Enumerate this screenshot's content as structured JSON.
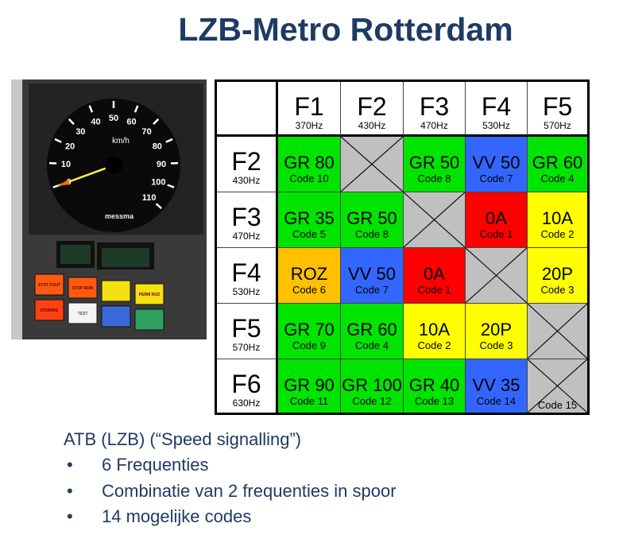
{
  "title": "LZB-Metro Rotterdam",
  "photo": {
    "gauge_labels": [
      "0",
      "10",
      "20",
      "30",
      "40",
      "50",
      "60",
      "70",
      "80",
      "90",
      "100",
      "110"
    ],
    "unit": "km/h",
    "brand": "messma",
    "buttons": [
      "SYST FOUT",
      "STOP RDM",
      "",
      "PERM ROZ",
      "STORING",
      "TEST",
      "",
      ""
    ]
  },
  "colors": {
    "green": "#00e400",
    "blue": "#3366ff",
    "red": "#ff0000",
    "yellow": "#ffff00",
    "orange": "#ffc000",
    "grey": "#c0c0c0",
    "title": "#1f3a64"
  },
  "table": {
    "columns": [
      {
        "name": "F1",
        "freq": "370Hz"
      },
      {
        "name": "F2",
        "freq": "430Hz"
      },
      {
        "name": "F3",
        "freq": "470Hz"
      },
      {
        "name": "F4",
        "freq": "530Hz"
      },
      {
        "name": "F5",
        "freq": "570Hz"
      }
    ],
    "rows": [
      {
        "name": "F2",
        "freq": "430Hz",
        "cells": [
          {
            "label": "GR 80",
            "code": "Code 10",
            "color": "green"
          },
          {
            "x": true
          },
          {
            "label": "GR 50",
            "code": "Code 8",
            "color": "green"
          },
          {
            "label": "VV 50",
            "code": "Code 7",
            "color": "blue"
          },
          {
            "label": "GR 60",
            "code": "Code 4",
            "color": "green"
          }
        ]
      },
      {
        "name": "F3",
        "freq": "470Hz",
        "cells": [
          {
            "label": "GR 35",
            "code": "Code 5",
            "color": "green"
          },
          {
            "label": "GR 50",
            "code": "Code 8",
            "color": "green"
          },
          {
            "x": true
          },
          {
            "label": "0A",
            "code": "Code 1",
            "color": "red"
          },
          {
            "label": "10A",
            "code": "Code 2",
            "color": "yellow"
          }
        ]
      },
      {
        "name": "F4",
        "freq": "530Hz",
        "cells": [
          {
            "label": "ROZ",
            "code": "Code 6",
            "color": "orange"
          },
          {
            "label": "VV 50",
            "code": "Code 7",
            "color": "blue"
          },
          {
            "label": "0A",
            "code": "Code 1",
            "color": "red"
          },
          {
            "x": true
          },
          {
            "label": "20P",
            "code": "Code 3",
            "color": "yellow"
          }
        ]
      },
      {
        "name": "F5",
        "freq": "570Hz",
        "cells": [
          {
            "label": "GR 70",
            "code": "Code 9",
            "color": "green"
          },
          {
            "label": "GR 60",
            "code": "Code 4",
            "color": "green"
          },
          {
            "label": "10A",
            "code": "Code 2",
            "color": "yellow"
          },
          {
            "label": "20P",
            "code": "Code 3",
            "color": "yellow"
          },
          {
            "x": true
          }
        ]
      },
      {
        "name": "F6",
        "freq": "630Hz",
        "cells": [
          {
            "label": "GR 90",
            "code": "Code 11",
            "color": "green"
          },
          {
            "label": "GR 100",
            "code": "Code 12",
            "color": "green"
          },
          {
            "label": "GR 40",
            "code": "Code 13",
            "color": "green"
          },
          {
            "label": "VV 35",
            "code": "Code 14",
            "color": "blue"
          },
          {
            "x": true,
            "code": "Code 15"
          }
        ]
      }
    ]
  },
  "bullets": {
    "heading": "ATB (LZB) (“Speed signalling”)",
    "items": [
      "6 Frequenties",
      "Combinatie van 2 frequenties in spoor",
      "14 mogelijke codes"
    ],
    "marker": "•"
  }
}
